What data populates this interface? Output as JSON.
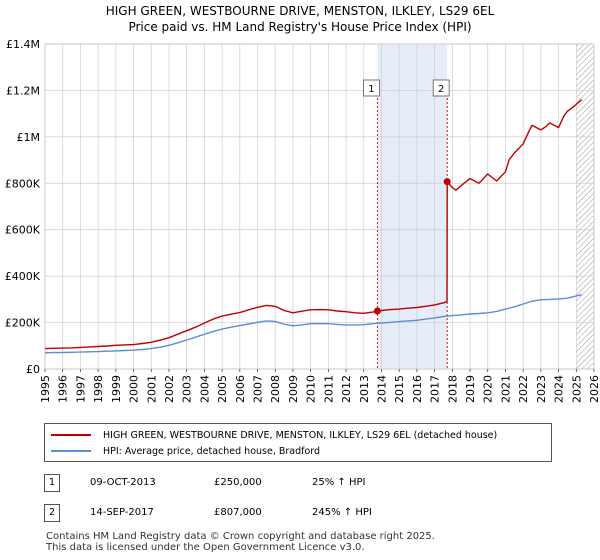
{
  "header": {
    "title_line1": "HIGH GREEN, WESTBOURNE DRIVE, MENSTON, ILKLEY, LS29 6EL",
    "title_line2": "Price paid vs. HM Land Registry's House Price Index (HPI)"
  },
  "colors": {
    "property": "#c00000",
    "hpi": "#5b8fd4",
    "highlight": "#e6edf9",
    "grid": "#cccccc"
  },
  "chart_data": {
    "type": "line",
    "xlim": [
      1995,
      2026
    ],
    "ylim": [
      0,
      1400000
    ],
    "y_ticks": [
      {
        "value": 0,
        "label": "£0"
      },
      {
        "value": 200000,
        "label": "£200K"
      },
      {
        "value": 400000,
        "label": "£400K"
      },
      {
        "value": 600000,
        "label": "£600K"
      },
      {
        "value": 800000,
        "label": "£800K"
      },
      {
        "value": 1000000,
        "label": "£1M"
      },
      {
        "value": 1200000,
        "label": "£1.2M"
      },
      {
        "value": 1400000,
        "label": "£1.4M"
      }
    ],
    "x_ticks": [
      "1995",
      "1996",
      "1997",
      "1998",
      "1999",
      "2000",
      "2001",
      "2002",
      "2003",
      "2004",
      "2005",
      "2006",
      "2007",
      "2008",
      "2009",
      "2010",
      "2011",
      "2012",
      "2013",
      "2014",
      "2015",
      "2016",
      "2017",
      "2018",
      "2019",
      "2020",
      "2021",
      "2022",
      "2023",
      "2024",
      "2025",
      "2026"
    ],
    "highlight_span": [
      2013.77,
      2017.71
    ],
    "hatch_start": 2025.0,
    "series": [
      {
        "name": "HIGH GREEN, WESTBOURNE DRIVE, MENSTON, ILKLEY, LS29 6EL (detached house)",
        "color": "#c00000",
        "x": [
          1995,
          1995.5,
          1996,
          1996.5,
          1997,
          1997.5,
          1998,
          1998.5,
          1999,
          1999.5,
          2000,
          2000.5,
          2001,
          2001.5,
          2002,
          2002.5,
          2003,
          2003.5,
          2004,
          2004.5,
          2005,
          2005.5,
          2006,
          2006.5,
          2007,
          2007.5,
          2008,
          2008.5,
          2009,
          2009.5,
          2010,
          2010.5,
          2011,
          2011.5,
          2012,
          2012.5,
          2013,
          2013.5,
          2013.77,
          2014,
          2014.5,
          2015,
          2015.5,
          2016,
          2016.5,
          2017,
          2017.5,
          2017.7,
          2017.71,
          2018,
          2018.2,
          2018.5,
          2019,
          2019.5,
          2020,
          2020.5,
          2021,
          2021.2,
          2021.5,
          2022,
          2022.3,
          2022.5,
          2023,
          2023.3,
          2023.5,
          2024,
          2024.3,
          2024.5,
          2025,
          2025.3
        ],
        "values": [
          88000,
          89000,
          90000,
          91000,
          93000,
          95000,
          97000,
          99000,
          102000,
          104000,
          105000,
          110000,
          115000,
          124000,
          135000,
          150000,
          165000,
          180000,
          198000,
          215000,
          228000,
          236000,
          243000,
          255000,
          266000,
          274000,
          270000,
          252000,
          242000,
          249000,
          255000,
          256000,
          255000,
          250000,
          247000,
          242000,
          240000,
          245000,
          250000,
          252000,
          256000,
          258000,
          262000,
          265000,
          270000,
          276000,
          285000,
          290000,
          807000,
          782000,
          770000,
          790000,
          820000,
          800000,
          840000,
          810000,
          850000,
          900000,
          930000,
          970000,
          1020000,
          1050000,
          1030000,
          1045000,
          1060000,
          1040000,
          1090000,
          1110000,
          1140000,
          1160000
        ]
      },
      {
        "name": "HPI: Average price, detached house, Bradford",
        "color": "#5b8fd4",
        "x": [
          1995,
          1995.5,
          1996,
          1996.5,
          1997,
          1997.5,
          1998,
          1998.5,
          1999,
          1999.5,
          2000,
          2000.5,
          2001,
          2001.5,
          2002,
          2002.5,
          2003,
          2003.5,
          2004,
          2004.5,
          2005,
          2005.5,
          2006,
          2006.5,
          2007,
          2007.5,
          2008,
          2008.5,
          2009,
          2009.5,
          2010,
          2010.5,
          2011,
          2011.5,
          2012,
          2012.5,
          2013,
          2013.5,
          2014,
          2014.5,
          2015,
          2015.5,
          2016,
          2016.5,
          2017,
          2017.5,
          2018,
          2018.5,
          2019,
          2019.5,
          2020,
          2020.5,
          2021,
          2021.5,
          2022,
          2022.5,
          2023,
          2023.5,
          2024,
          2024.5,
          2025,
          2025.3
        ],
        "values": [
          70000,
          70500,
          71000,
          72000,
          73000,
          74000,
          75000,
          76500,
          78000,
          79500,
          81000,
          84000,
          88000,
          94000,
          102000,
          113000,
          125000,
          137000,
          150000,
          162000,
          172000,
          180000,
          187000,
          194000,
          201000,
          207000,
          205000,
          193000,
          186000,
          190000,
          195000,
          196000,
          195000,
          192000,
          190000,
          190000,
          191000,
          195000,
          198000,
          201000,
          204000,
          207000,
          210000,
          215000,
          220000,
          226000,
          230000,
          233000,
          237000,
          239000,
          242000,
          248000,
          258000,
          268000,
          280000,
          292000,
          298000,
          300000,
          302000,
          305000,
          315000,
          320000
        ]
      }
    ],
    "markers": [
      {
        "label": "1",
        "x": 2013.77,
        "value": 250000
      },
      {
        "label": "2",
        "x": 2017.71,
        "value": 807000
      }
    ]
  },
  "legend": {
    "property_label": "HIGH GREEN, WESTBOURNE DRIVE, MENSTON, ILKLEY, LS29 6EL (detached house)",
    "hpi_label": "HPI: Average price, detached house, Bradford"
  },
  "sales": [
    {
      "num": "1",
      "date": "09-OCT-2013",
      "price": "£250,000",
      "hpi": "25% ↑ HPI"
    },
    {
      "num": "2",
      "date": "14-SEP-2017",
      "price": "£807,000",
      "hpi": "245% ↑ HPI"
    }
  ],
  "footer": {
    "line1": "Contains HM Land Registry data © Crown copyright and database right 2025.",
    "line2": "This data is licensed under the Open Government Licence v3.0."
  }
}
